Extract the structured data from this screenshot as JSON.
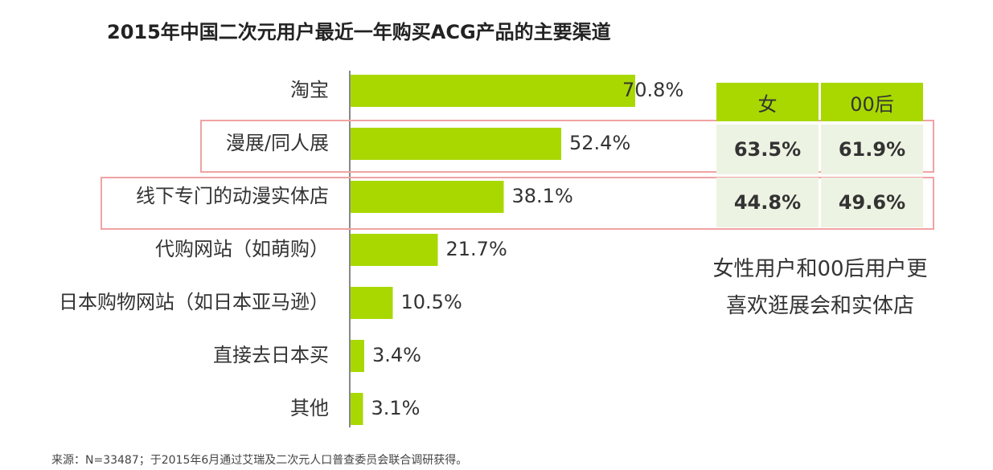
{
  "chart_data": {
    "type": "bar",
    "orientation": "horizontal",
    "title": "2015年中国二次元用户最近一年购买ACG产品的主要渠道",
    "categories": [
      "淘宝",
      "漫展/同人展",
      "线下专门的动漫实体店",
      "代购网站（如萌购）",
      "日本购物网站（如日本亚马逊）",
      "直接去日本买",
      "其他"
    ],
    "values": [
      70.8,
      52.4,
      38.1,
      21.7,
      10.5,
      3.4,
      3.1
    ],
    "value_labels": [
      "70.8%",
      "52.4%",
      "38.1%",
      "21.7%",
      "10.5%",
      "3.4%",
      "3.1%"
    ],
    "xlim": [
      0,
      75
    ],
    "grid": false,
    "bar_color": "#a8d800"
  },
  "side_table": {
    "headers": [
      "女",
      "00后"
    ],
    "rows": [
      [
        "63.5%",
        "61.9%"
      ],
      [
        "44.8%",
        "49.6%"
      ]
    ],
    "header_color": "#a8d800",
    "cell_color": "#edf3e3",
    "highlight_color": "#f0a3a3"
  },
  "note": {
    "line1": "女性用户和00后用户更",
    "line2": "喜欢逛展会和实体店"
  },
  "source": "来源：N=33487；于2015年6月通过艾瑞及二次元人口普查委员会联合调研获得。"
}
